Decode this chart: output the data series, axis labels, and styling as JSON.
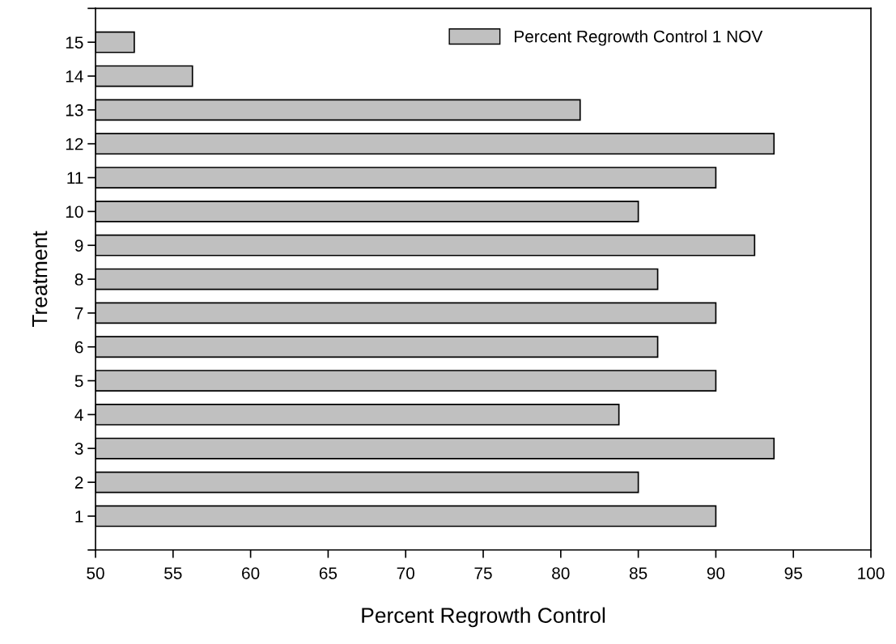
{
  "chart_data": {
    "type": "bar",
    "orientation": "horizontal",
    "xlabel": "Percent Regrowth Control",
    "ylabel": "Treatment",
    "categories": [
      "15",
      "14",
      "13",
      "12",
      "11",
      "10",
      "9",
      "8",
      "7",
      "6",
      "5",
      "4",
      "3",
      "2",
      "1"
    ],
    "series": [
      {
        "name": "Percent Regrowth Control 1 NOV",
        "color": "#c0c0c0",
        "values": [
          52.5,
          56.25,
          81.25,
          93.75,
          90,
          85,
          92.5,
          86.25,
          90,
          86.25,
          90,
          83.75,
          93.75,
          85,
          90
        ]
      }
    ],
    "xlim": [
      50,
      100
    ],
    "xticks": [
      50,
      55,
      60,
      65,
      70,
      75,
      80,
      85,
      90,
      95,
      100
    ],
    "grid": false,
    "legend": "top right"
  }
}
